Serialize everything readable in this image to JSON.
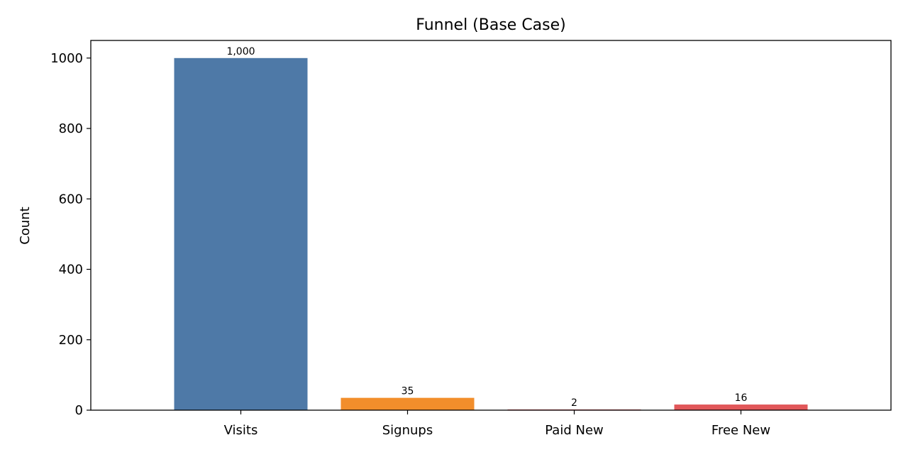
{
  "chart_data": {
    "type": "bar",
    "title": "Funnel (Base Case)",
    "xlabel": "",
    "ylabel": "Count",
    "categories": [
      "Visits",
      "Signups",
      "Paid New",
      "Free New"
    ],
    "values": [
      1000,
      35,
      2,
      16
    ],
    "data_labels": [
      "1,000",
      "35",
      "2",
      "16"
    ],
    "colors": [
      "#4e79a7",
      "#f28e2b",
      "#e15759",
      "#e15759"
    ],
    "ylim": [
      0,
      1050
    ],
    "yticks": [
      0,
      200,
      400,
      600,
      800,
      1000
    ],
    "ytick_labels": [
      "0",
      "200",
      "400",
      "600",
      "800",
      "1000"
    ],
    "grid": false,
    "legend": "none"
  }
}
